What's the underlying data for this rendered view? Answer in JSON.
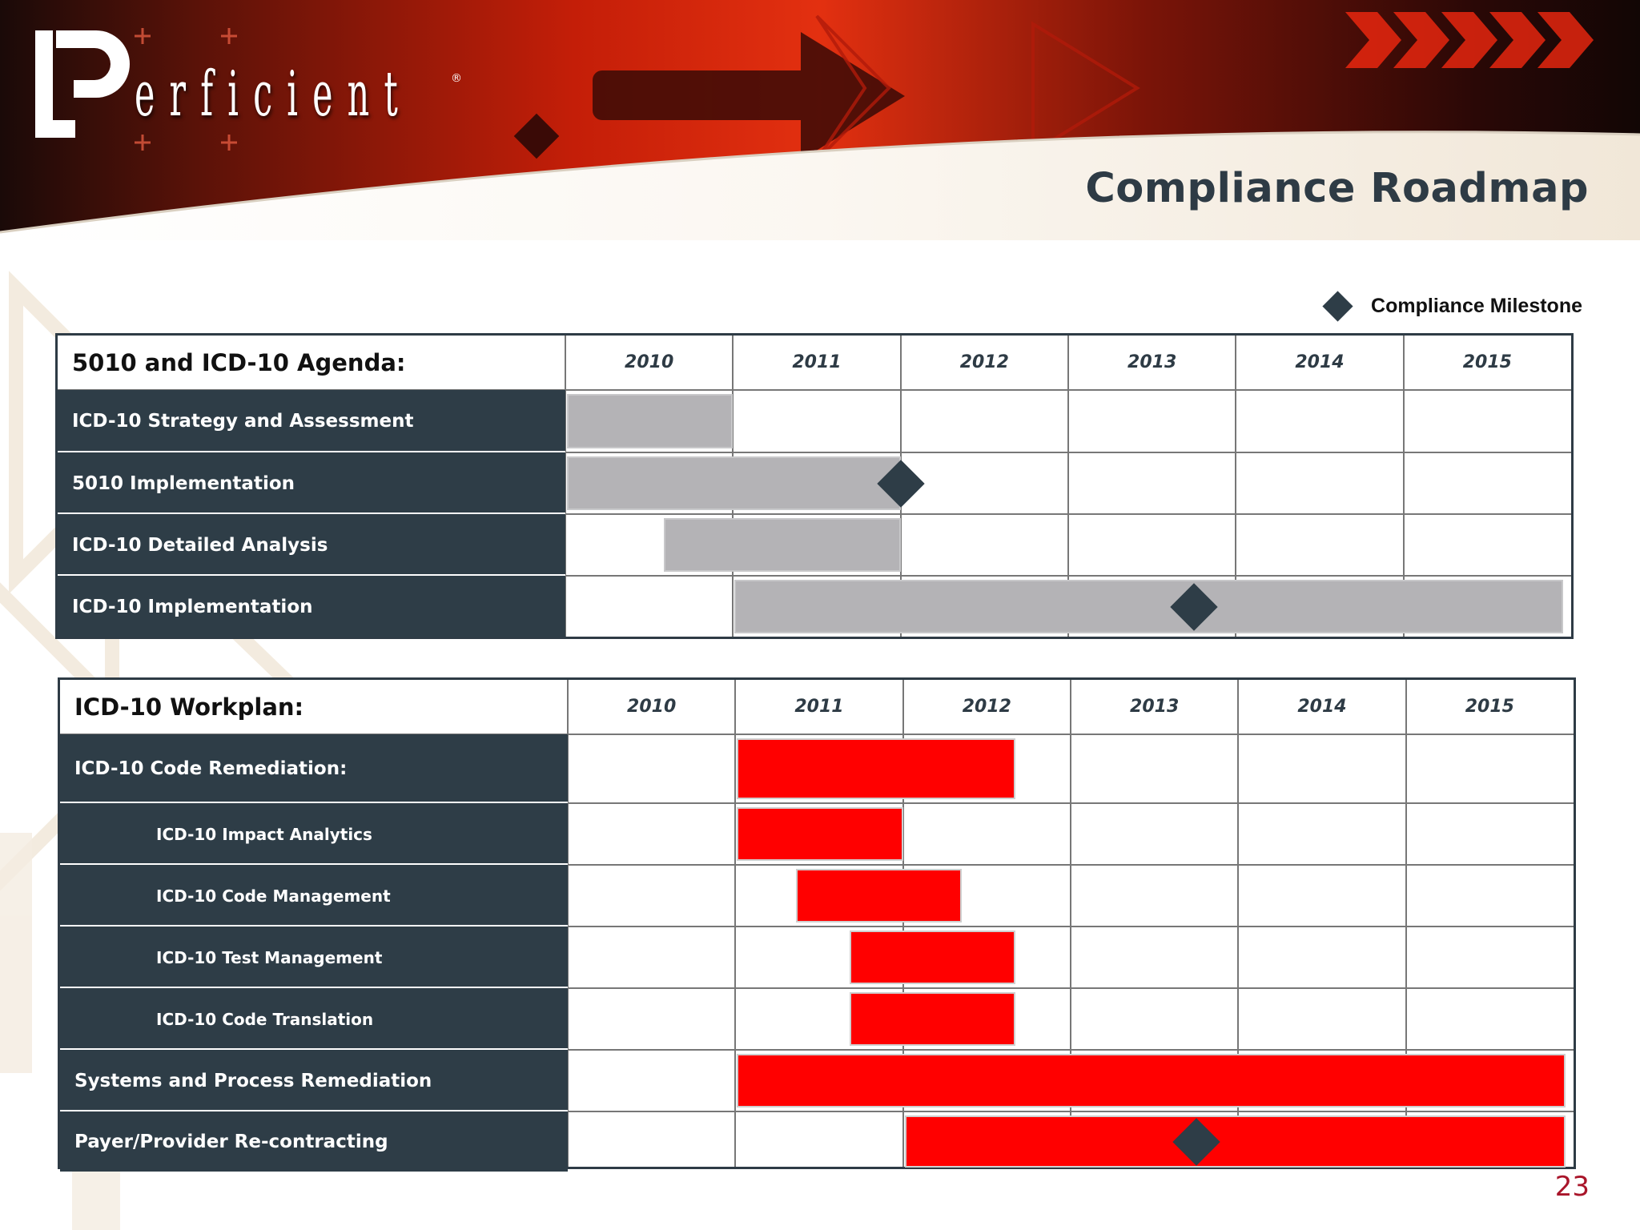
{
  "header": {
    "logo_text": "erficient",
    "logo_mark": "P",
    "logo_registered": "®",
    "title": "Compliance Roadmap"
  },
  "legend": {
    "label": "Compliance Milestone",
    "icon": "diamond-icon"
  },
  "page_number": "23",
  "colors": {
    "dark_slate": "#2e3d47",
    "title_text": "#2e3b45",
    "gray_bar": "#b4b3b6",
    "red_bar": "#ff0000",
    "page_number": "#a9152a"
  },
  "chart_data": [
    {
      "type": "gantt",
      "title": "5010 and ICD-10 Agenda:",
      "years": [
        "2010",
        "2011",
        "2012",
        "2013",
        "2014",
        "2015"
      ],
      "bar_color": "gray",
      "tasks": [
        {
          "label": "ICD-10 Strategy and Assessment",
          "level": 0,
          "start": 2010.0,
          "end": 2011.0,
          "milestone": null
        },
        {
          "label": "5010 Implementation",
          "level": 0,
          "start": 2010.0,
          "end": 2012.0,
          "milestone": 2012.0
        },
        {
          "label": "ICD-10 Detailed Analysis",
          "level": 0,
          "start": 2010.58,
          "end": 2012.0,
          "milestone": null
        },
        {
          "label": "ICD-10 Implementation",
          "level": 0,
          "start": 2011.0,
          "end": 2015.95,
          "milestone": 2013.75
        }
      ]
    },
    {
      "type": "gantt",
      "title": "ICD-10 Workplan:",
      "years": [
        "2010",
        "2011",
        "2012",
        "2013",
        "2014",
        "2015"
      ],
      "bar_color": "red",
      "tasks": [
        {
          "label": "ICD-10 Code Remediation:",
          "level": 0,
          "start": 2011.0,
          "end": 2012.67,
          "milestone": null
        },
        {
          "label": "ICD-10 Impact Analytics",
          "level": 1,
          "start": 2011.0,
          "end": 2012.0,
          "milestone": null
        },
        {
          "label": "ICD-10 Code Management",
          "level": 1,
          "start": 2011.35,
          "end": 2012.35,
          "milestone": null
        },
        {
          "label": "ICD-10 Test Management",
          "level": 1,
          "start": 2011.67,
          "end": 2012.67,
          "milestone": null
        },
        {
          "label": "ICD-10 Code Translation",
          "level": 1,
          "start": 2011.67,
          "end": 2012.67,
          "milestone": null
        },
        {
          "label": "Systems and Process Remediation",
          "level": 0,
          "start": 2011.0,
          "end": 2015.95,
          "milestone": null
        },
        {
          "label": "Payer/Provider Re-contracting",
          "level": 0,
          "start": 2012.0,
          "end": 2015.95,
          "milestone": 2013.75
        }
      ]
    }
  ]
}
